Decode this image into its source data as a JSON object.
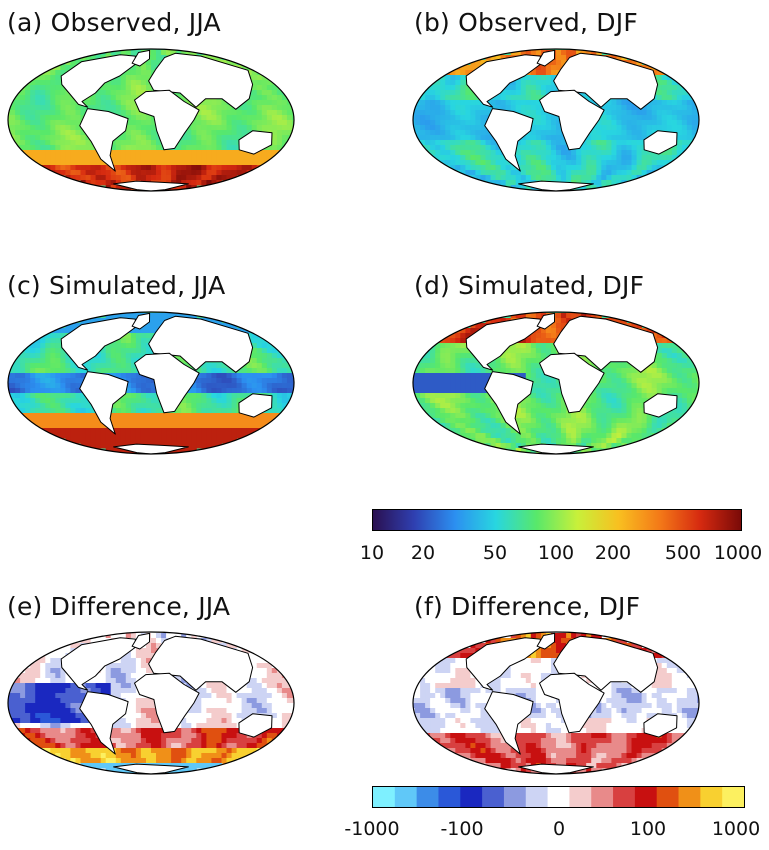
{
  "panels": [
    {
      "id": "a",
      "title": "(a)  Observed, JJA"
    },
    {
      "id": "b",
      "title": "(b)  Observed, DJF"
    },
    {
      "id": "c",
      "title": "(c)  Simulated, JJA"
    },
    {
      "id": "d",
      "title": "(d) Simulated, DJF"
    },
    {
      "id": "e",
      "title": "(e)  Difference, JJA"
    },
    {
      "id": "f",
      "title": "(f)  Difference, DJF"
    }
  ],
  "colorbar_values": {
    "scale": "log",
    "ticks": [
      "10",
      "20",
      "50",
      "100",
      "200",
      "500",
      "1000"
    ],
    "colors": [
      "#2a1050",
      "#2f3fb0",
      "#2c8ff0",
      "#28d6e0",
      "#58e86a",
      "#c8f03a",
      "#f8c020",
      "#f47a18",
      "#d62a10",
      "#7a0a08"
    ]
  },
  "colorbar_difference": {
    "scale": "symlog",
    "ticks": [
      "-1000",
      "-100",
      "0",
      "100",
      "1000"
    ],
    "colors": [
      "#7ef0ff",
      "#60c8f8",
      "#3c8ce8",
      "#2a58d8",
      "#1a28c0",
      "#4a60d0",
      "#8c9ae0",
      "#cdd4f4",
      "#ffffff",
      "#f4cccc",
      "#e88a8a",
      "#d84040",
      "#c81010",
      "#e05010",
      "#f09018",
      "#f8d030",
      "#fcf060"
    ]
  }
}
